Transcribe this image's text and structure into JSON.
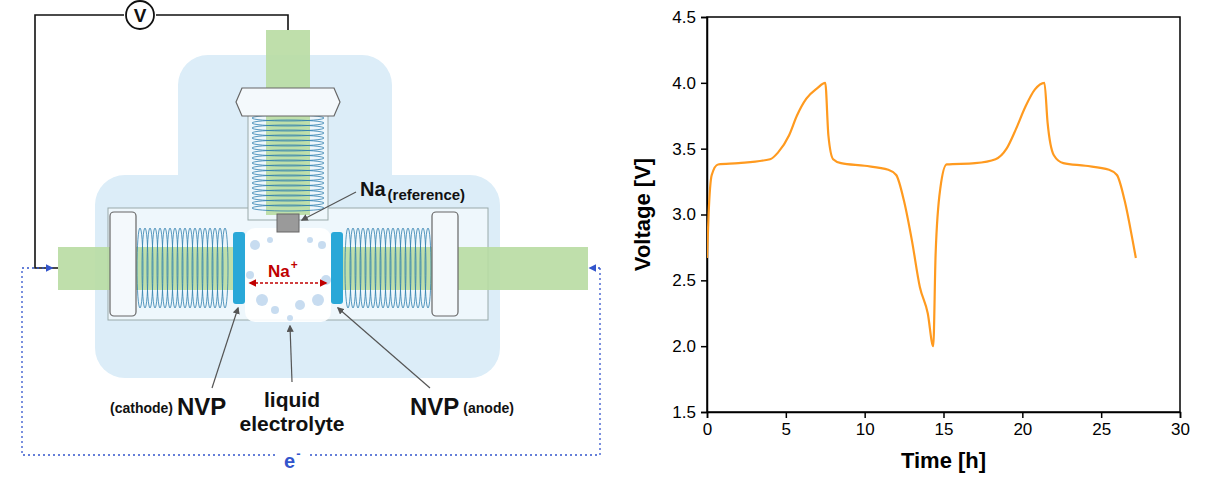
{
  "chart_data": {
    "type": "line",
    "x_label": "Time [h]",
    "y_label": "Voltage [V]",
    "color": "#ff9a1f",
    "x": [
      0,
      0.1,
      0.3,
      0.7,
      2,
      4,
      4.5,
      5.2,
      5.7,
      6.3,
      7,
      7.5,
      7.7,
      8,
      8.5,
      10,
      11.5,
      12,
      12.5,
      13,
      13.5,
      14.0,
      14.35,
      14.5,
      14.8,
      15.2,
      17,
      18.3,
      19,
      19.6,
      20.2,
      20.8,
      21.4,
      21.6,
      22,
      22.6,
      24,
      25.5,
      26,
      26.5,
      27,
      27.2
    ],
    "values": [
      2.67,
      3.0,
      3.3,
      3.38,
      3.39,
      3.42,
      3.47,
      3.6,
      3.75,
      3.88,
      3.96,
      4.0,
      3.6,
      3.42,
      3.39,
      3.37,
      3.34,
      3.3,
      3.1,
      2.8,
      2.45,
      2.25,
      2.0,
      2.7,
      3.2,
      3.38,
      3.39,
      3.42,
      3.5,
      3.65,
      3.82,
      3.95,
      4.0,
      3.7,
      3.45,
      3.39,
      3.37,
      3.34,
      3.3,
      3.1,
      2.8,
      2.67
    ],
    "xlim": [
      0,
      30
    ],
    "xticks": [
      0,
      5,
      10,
      15,
      20,
      25,
      30
    ],
    "ylim": [
      1.5,
      4.5
    ],
    "yticks": [
      1.5,
      {
        "value": 2,
        "label": "2.0"
      },
      2.5,
      {
        "value": 3,
        "label": "3.0"
      },
      3.5,
      {
        "value": 4,
        "label": "4.0"
      },
      4.5
    ]
  },
  "diagram": {
    "voltmeter": "V",
    "reference": {
      "label": "Na",
      "role": "(reference)"
    },
    "ion": {
      "label": "Na",
      "charge": "+"
    },
    "cathode": {
      "label": "NVP",
      "role": "(cathode)"
    },
    "anode": {
      "label": "NVP",
      "role": "(anode)"
    },
    "electrolyte": [
      "liquid",
      "electrolyte"
    ],
    "electron": {
      "label": "e",
      "charge": "-"
    }
  }
}
